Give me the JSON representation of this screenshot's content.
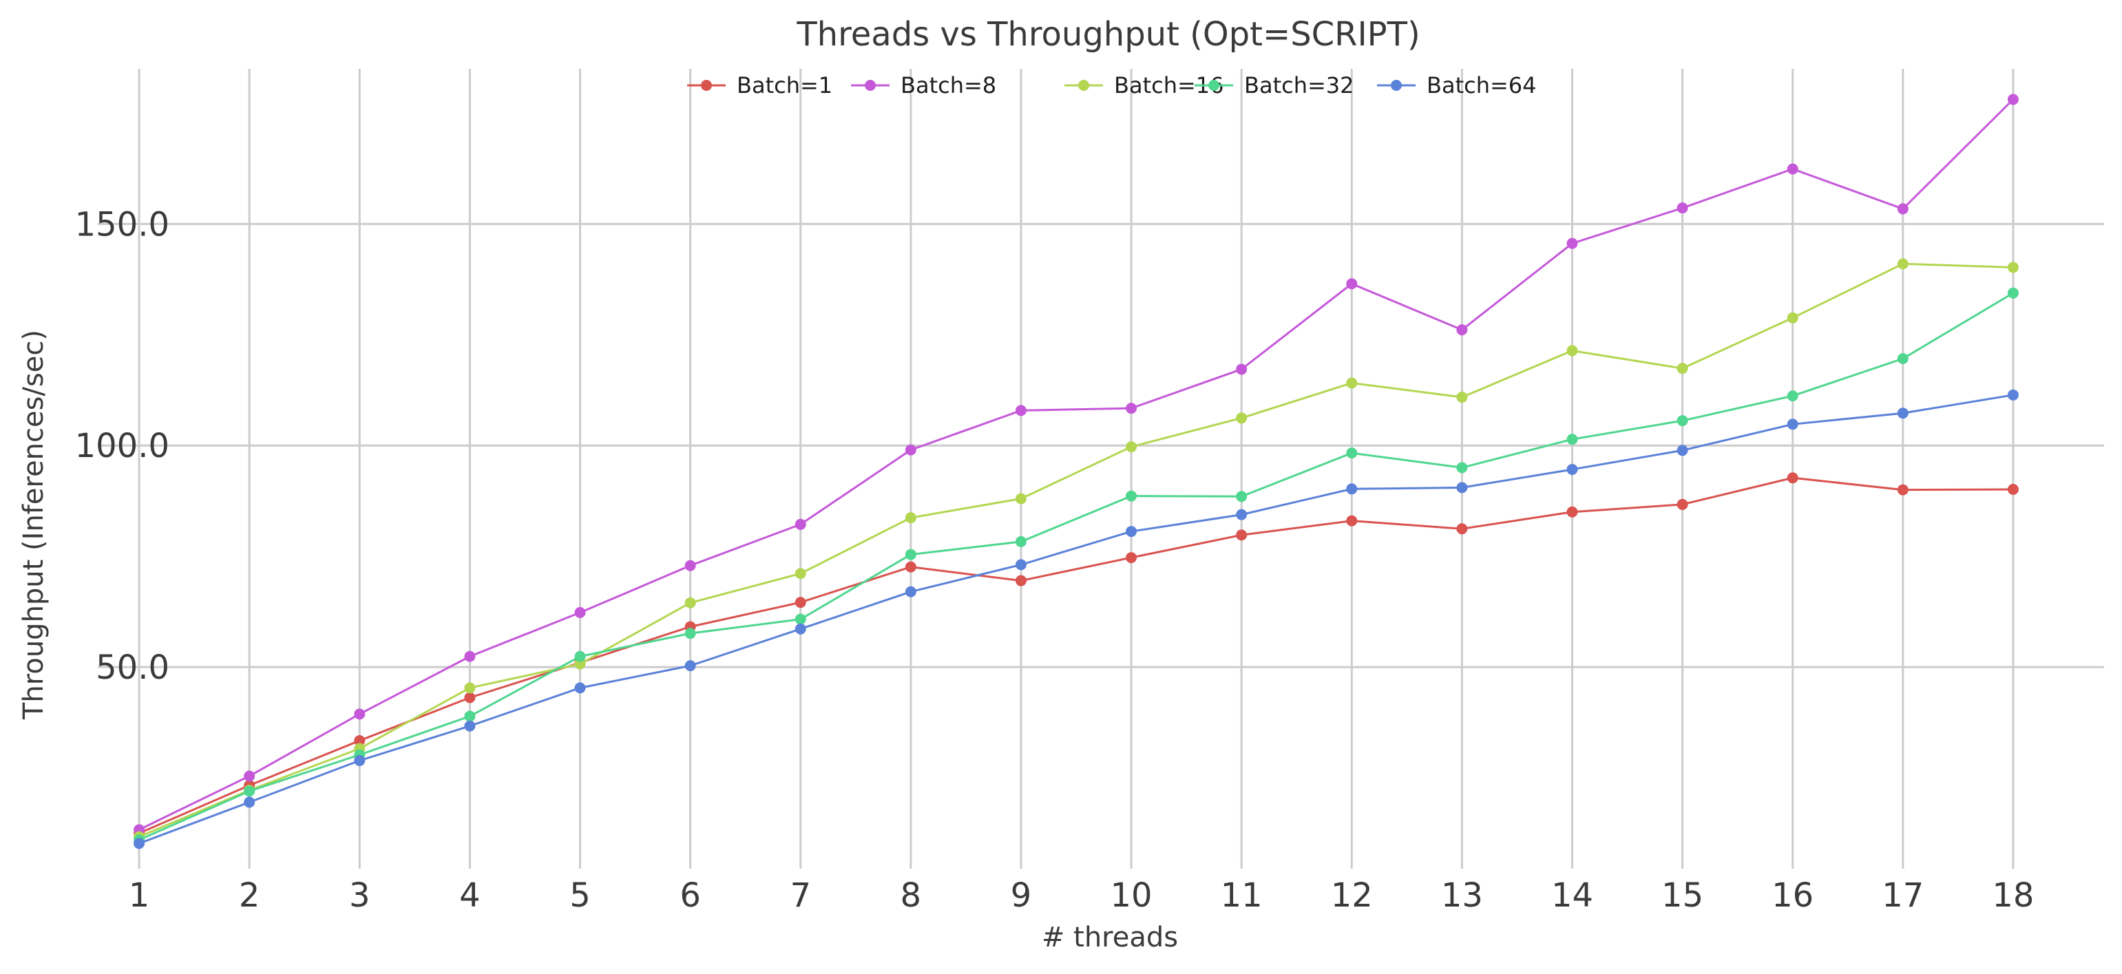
{
  "chart_data": {
    "type": "line",
    "title": "Threads vs Throughput (Opt=SCRIPT)",
    "xlabel": "# threads",
    "ylabel": "Throughput (Inferences/sec)",
    "x": [
      1,
      2,
      3,
      4,
      5,
      6,
      7,
      8,
      9,
      10,
      11,
      12,
      13,
      14,
      15,
      16,
      17,
      18
    ],
    "x_tick_labels": [
      "1",
      "2",
      "3",
      "4",
      "5",
      "6",
      "7",
      "8",
      "9",
      "10",
      "11",
      "12",
      "13",
      "14",
      "15",
      "16",
      "17",
      "18"
    ],
    "y_ticks": [
      50,
      100,
      150
    ],
    "y_tick_labels": [
      "50.0",
      "100.0",
      "150.0"
    ],
    "xlim": [
      0.3,
      18.85
    ],
    "ylim": [
      4.5,
      185
    ],
    "grid": true,
    "legend_position": "top-center",
    "series": [
      {
        "name": "Batch=1",
        "color": "#d9534f",
        "values": [
          12.5,
          23.3,
          33.4,
          43.1,
          51.0,
          59.1,
          64.6,
          72.6,
          69.5,
          74.7,
          79.8,
          83.0,
          81.2,
          85.0,
          86.7,
          92.7,
          90.0,
          90.1
        ]
      },
      {
        "name": "Batch=8",
        "color": "#c558d9",
        "values": [
          13.3,
          25.4,
          39.4,
          52.4,
          62.3,
          72.9,
          82.2,
          99.0,
          107.9,
          108.4,
          117.2,
          136.5,
          126.1,
          145.6,
          153.6,
          162.4,
          153.4,
          178.1
        ]
      },
      {
        "name": "Batch=16",
        "color": "#b3d651",
        "values": [
          11.7,
          22.2,
          31.6,
          45.3,
          50.7,
          64.5,
          71.1,
          83.7,
          88.0,
          99.7,
          106.2,
          114.1,
          110.9,
          121.4,
          117.4,
          128.8,
          141.0,
          140.2
        ]
      },
      {
        "name": "Batch=32",
        "color": "#4fd68f",
        "values": [
          11.0,
          22.0,
          30.2,
          38.9,
          52.4,
          57.6,
          60.8,
          75.4,
          78.3,
          88.6,
          88.5,
          98.3,
          95.0,
          101.4,
          105.6,
          111.2,
          119.6,
          134.4
        ]
      },
      {
        "name": "Batch=64",
        "color": "#5b82d9",
        "values": [
          10.2,
          19.5,
          28.9,
          36.7,
          45.3,
          50.3,
          58.6,
          67.0,
          73.1,
          80.6,
          84.4,
          90.2,
          90.5,
          94.6,
          98.9,
          104.8,
          107.3,
          111.4
        ]
      }
    ]
  }
}
